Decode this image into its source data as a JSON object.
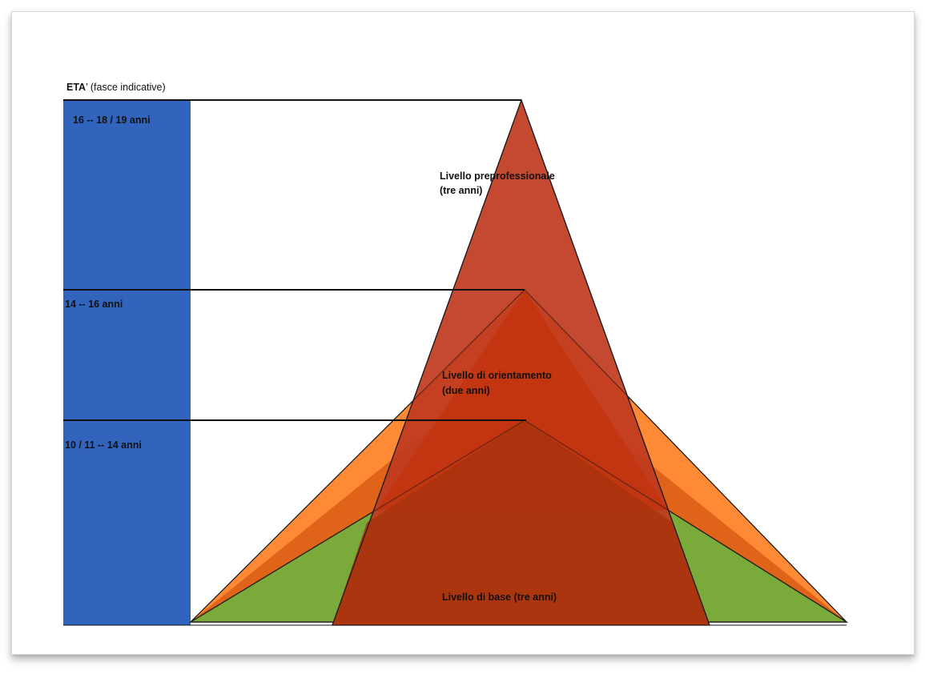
{
  "header": {
    "age_heading_bold": "ETA",
    "age_heading_rest": "’ (fasce indicative)"
  },
  "age_bands": [
    {
      "label": "16 -- 18 / 19 anni"
    },
    {
      "label": "14 -- 16 anni"
    },
    {
      "label": "10 / 11 -- 14 anni"
    }
  ],
  "levels": {
    "preprofessional": {
      "line1": "Livello preprofessionale",
      "line2": "(tre anni)"
    },
    "orientation": {
      "line1": "Livello di orientamento",
      "line2": "(due anni)"
    },
    "base": {
      "line1": "Livello di base (tre anni)"
    }
  },
  "colors": {
    "age_bar": "#3264bd",
    "base_triangle": "#7aaa3a",
    "orientation_triangle": "#ff8a35",
    "inner_triangle": "#bd3a12",
    "preprofessional_triangle": "#bf3a1e",
    "line": "#111111"
  }
}
